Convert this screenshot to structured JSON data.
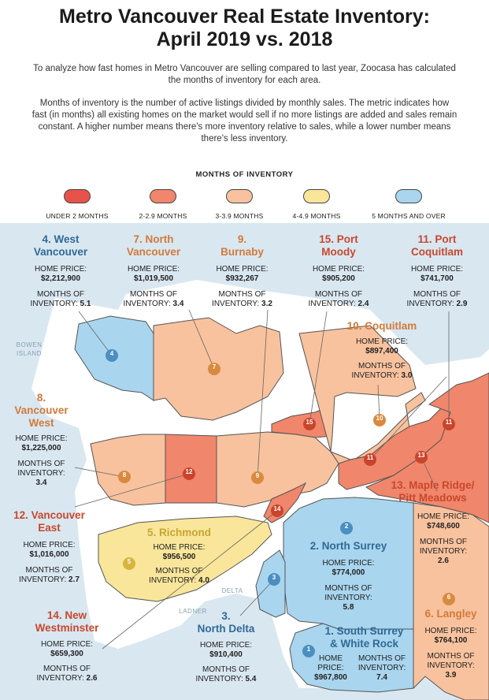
{
  "header": {
    "title_line1": "Metro Vancouver Real Estate Inventory:",
    "title_line2": "April 2019 vs. 2018",
    "intro1": "To analyze how fast homes in Metro Vancouver are selling compared to last year, Zoocasa has calculated the months of inventory for each area.",
    "intro2": "Months of inventory is the number of active listings divided by monthly sales. The metric indicates how fast (in months) all existing homes on the market would sell if no more listings are added and sales remain constant. A higher number means there's more inventory relative to sales, while a lower number means there's less inventory."
  },
  "legend": {
    "title": "MONTHS OF INVENTORY",
    "items": [
      {
        "label": "UNDER 2 MONTHS",
        "color": "#e7524a"
      },
      {
        "label": "2-2.9 MONTHS",
        "color": "#f0866b"
      },
      {
        "label": "3-3.9 MONTHS",
        "color": "#f8c29e"
      },
      {
        "label": "4-4.9 MONTHS",
        "color": "#f9e69a"
      },
      {
        "label": "5 MONTHS AND OVER",
        "color": "#a9d5ee"
      }
    ]
  },
  "colors": {
    "sea": "#d9e7f1",
    "land": "#ffffff",
    "tier_2": "#f0866b",
    "tier_3": "#f8c29e",
    "tier_4": "#f9e69a",
    "tier_5": "#a9d5ee",
    "marker_blue": "#4a8fc0",
    "marker_orange": "#d98a3e",
    "marker_red": "#c9442c",
    "marker_gold": "#d7b43c"
  },
  "map": {
    "place_names": [
      "BOWEN",
      "ISLAND",
      "DELTA",
      "LADNER"
    ]
  },
  "label_keys": {
    "price": "HOME PRICE:",
    "months": "MONTHS OF",
    "inventory": "INVENTORY:"
  },
  "areas": [
    {
      "number": "4",
      "name": "4. West Vancouver",
      "name_l1": "4. West",
      "name_l2": "Vancouver",
      "price": "$2,212,900",
      "months": "5.1"
    },
    {
      "number": "7",
      "name": "7. North Vancouver",
      "name_l1": "7. North",
      "name_l2": "Vancouver",
      "price": "$1,019,500",
      "months": "3.4"
    },
    {
      "number": "9",
      "name": "9. Burnaby",
      "name_l1": "9.",
      "name_l2": "Burnaby",
      "price": "$932,267",
      "months": "3.2"
    },
    {
      "number": "15",
      "name": "15. Port Moody",
      "name_l1": "15. Port",
      "name_l2": "Moody",
      "price": "$905,200",
      "months": "2.4"
    },
    {
      "number": "11",
      "name": "11. Port Coquitlam",
      "name_l1": "11. Port",
      "name_l2": "Coquitlam",
      "price": "$741,700",
      "months": "2.9"
    },
    {
      "number": "10",
      "name": "10. Coquitlam",
      "price": "$897,400",
      "months": "3.0"
    },
    {
      "number": "8",
      "name": "8. Vancouver West",
      "name_l1": "8.",
      "name_l2": "Vancouver",
      "name_l3": "West",
      "price": "$1,225,000",
      "months": "3.4"
    },
    {
      "number": "13",
      "name": "13. Maple Ridge/ Pitt Meadows",
      "name_l1": "13. Maple Ridge/",
      "name_l2": "Pitt Meadows",
      "price": "$748,600",
      "months": "2.6"
    },
    {
      "number": "12",
      "name": "12. Vancouver East",
      "name_l1": "12. Vancouver",
      "name_l2": "East",
      "price": "$1,016,000",
      "months": "2.7"
    },
    {
      "number": "5",
      "name": "5. Richmond",
      "price": "$956,500",
      "months": "4.0"
    },
    {
      "number": "2",
      "name": "2. North Surrey",
      "price": "$774,000",
      "months": "5.8"
    },
    {
      "number": "14",
      "name": "14. New Westminster",
      "name_l1": "14. New",
      "name_l2": "Westminster",
      "price": "$659,300",
      "months": "2.6"
    },
    {
      "number": "3",
      "name": "3. North Delta",
      "name_l1": "3.",
      "name_l2": "North Delta",
      "price": "$910,400",
      "months": "5.4"
    },
    {
      "number": "1",
      "name": "1. South Surrey & White Rock",
      "name_l1": "1. South Surrey",
      "name_l2": "& White Rock",
      "price": "$967,800",
      "months": "7.4"
    },
    {
      "number": "6",
      "name": "6. Langley",
      "price": "$764,100",
      "months": "3.9"
    }
  ]
}
